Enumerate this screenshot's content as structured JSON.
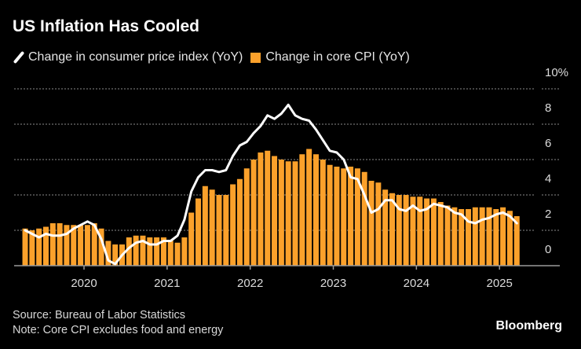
{
  "chart_data": {
    "type": "bar",
    "title": "US Inflation Has Cooled",
    "legend_position": "top-left",
    "grid": true,
    "y_unit": "%",
    "ylim": [
      0,
      10
    ],
    "y_ticks": [
      "0",
      "2",
      "4",
      "6",
      "8",
      "10%"
    ],
    "x_ticks": [
      "2020",
      "2021",
      "2022",
      "2023",
      "2024",
      "2025"
    ],
    "x_start": "2019-04",
    "x_end": "2025-03",
    "frequency": "monthly",
    "series": [
      {
        "name": "Change in consumer price index (YoY)",
        "kind": "line",
        "color": "#ffffff",
        "values": [
          2.0,
          1.8,
          1.6,
          1.8,
          1.7,
          1.7,
          1.8,
          2.1,
          2.3,
          2.5,
          2.3,
          1.5,
          0.3,
          0.1,
          0.6,
          1.0,
          1.3,
          1.4,
          1.2,
          1.2,
          1.4,
          1.4,
          1.7,
          2.6,
          4.2,
          5.0,
          5.4,
          5.4,
          5.3,
          5.4,
          6.2,
          6.8,
          7.0,
          7.5,
          7.9,
          8.5,
          8.3,
          8.6,
          9.1,
          8.5,
          8.3,
          8.2,
          7.7,
          7.1,
          6.5,
          6.4,
          6.0,
          5.0,
          4.9,
          4.0,
          3.0,
          3.2,
          3.7,
          3.7,
          3.2,
          3.1,
          3.4,
          3.1,
          3.2,
          3.5,
          3.4,
          3.3,
          3.0,
          2.9,
          2.5,
          2.4,
          2.6,
          2.7,
          2.9,
          3.0,
          2.8,
          2.4
        ]
      },
      {
        "name": "Change in core CPI (YoY)",
        "kind": "bar",
        "color": "#fba12b",
        "values": [
          2.1,
          2.0,
          2.1,
          2.2,
          2.4,
          2.4,
          2.3,
          2.3,
          2.3,
          2.3,
          2.4,
          2.1,
          1.4,
          1.2,
          1.2,
          1.6,
          1.7,
          1.7,
          1.6,
          1.6,
          1.6,
          1.4,
          1.3,
          1.6,
          3.0,
          3.8,
          4.5,
          4.3,
          4.0,
          4.0,
          4.6,
          4.9,
          5.5,
          6.0,
          6.4,
          6.5,
          6.2,
          6.0,
          5.9,
          5.9,
          6.3,
          6.6,
          6.3,
          6.0,
          5.7,
          5.6,
          5.5,
          5.6,
          5.5,
          5.3,
          4.8,
          4.7,
          4.3,
          4.1,
          4.0,
          4.0,
          3.9,
          3.9,
          3.8,
          3.8,
          3.6,
          3.4,
          3.3,
          3.2,
          3.2,
          3.3,
          3.3,
          3.3,
          3.2,
          3.3,
          3.1,
          2.8
        ]
      }
    ]
  },
  "footer": {
    "source": "Source: Bureau of Labor Statistics",
    "note": "Note: Core CPI excludes food and energy",
    "brand": "Bloomberg"
  }
}
